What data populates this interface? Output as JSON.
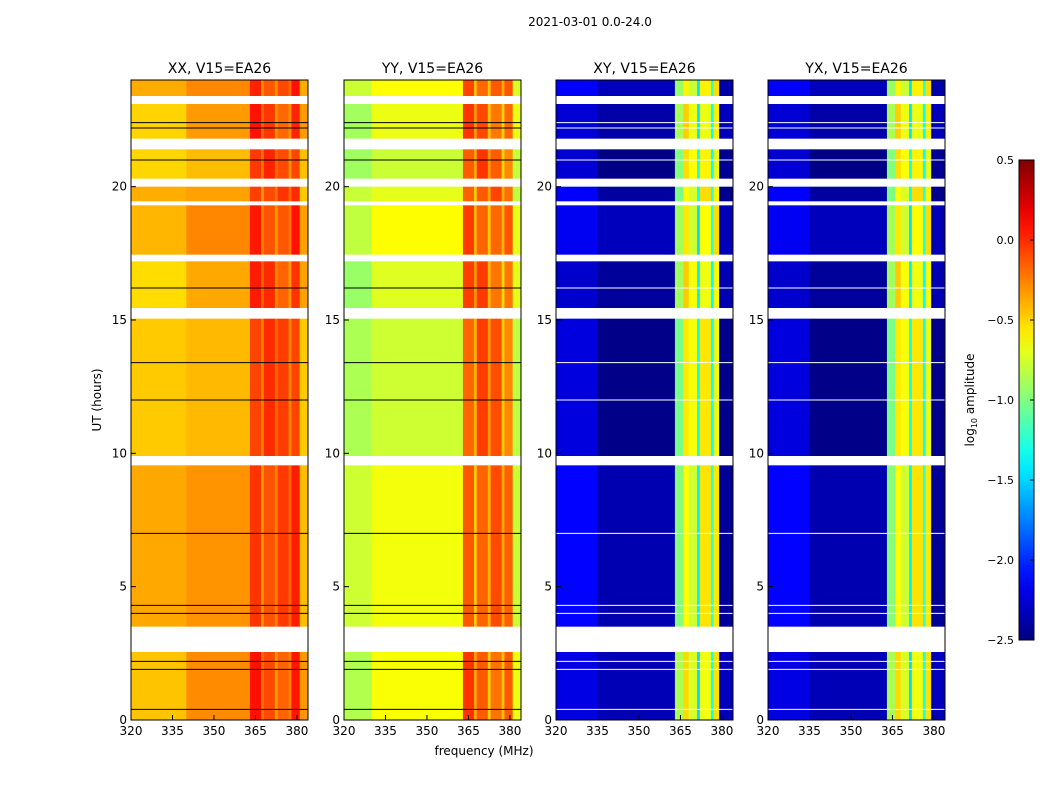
{
  "chart_data": {
    "type": "heatmap",
    "title": "2021-03-01 0.0-24.0",
    "xlabel": "frequency (MHz)",
    "ylabel": "UT (hours)",
    "xlim": [
      320,
      384
    ],
    "ylim": [
      0,
      24
    ],
    "xticks": [
      "320",
      "335",
      "350",
      "365",
      "380"
    ],
    "yticks": [
      "0",
      "5",
      "10",
      "15",
      "20"
    ],
    "colorbar": {
      "label_main": "log",
      "label_sub": "10",
      "label_rest": " amplitude",
      "range": [
        -2.5,
        0.5
      ],
      "ticks": [
        "0.5",
        "0.0",
        "−0.5",
        "−1.0",
        "−1.5",
        "−2.0",
        "−2.5"
      ],
      "colormap": "jet"
    },
    "flagged_hours": [
      [
        2.55,
        3.5
      ],
      [
        9.55,
        9.9
      ],
      [
        15.05,
        15.45
      ],
      [
        17.2,
        17.45
      ],
      [
        19.3,
        19.45
      ],
      [
        20.0,
        20.3
      ],
      [
        21.4,
        21.8
      ],
      [
        23.1,
        23.4
      ]
    ],
    "panels": [
      {
        "title": "XX, V15=EA26",
        "bands": [
          {
            "f": [
              320,
              340
            ],
            "v": -0.45
          },
          {
            "f": [
              340,
              363
            ],
            "v": -0.35
          },
          {
            "f": [
              363,
              367
            ],
            "v": 0.0
          },
          {
            "f": [
              367,
              368
            ],
            "v": -0.25
          },
          {
            "f": [
              368,
              372
            ],
            "v": -0.05
          },
          {
            "f": [
              372,
              373
            ],
            "v": -0.25
          },
          {
            "f": [
              373,
              377
            ],
            "v": -0.1
          },
          {
            "f": [
              377,
              378
            ],
            "v": -0.25
          },
          {
            "f": [
              378,
              381
            ],
            "v": 0.0
          },
          {
            "f": [
              381,
              384
            ],
            "v": -0.4
          }
        ]
      },
      {
        "title": "YY, V15=EA26",
        "bands": [
          {
            "f": [
              320,
              330
            ],
            "v": -0.85
          },
          {
            "f": [
              330,
              363
            ],
            "v": -0.7
          },
          {
            "f": [
              363,
              367
            ],
            "v": -0.1
          },
          {
            "f": [
              367,
              368
            ],
            "v": -0.4
          },
          {
            "f": [
              368,
              372
            ],
            "v": -0.1
          },
          {
            "f": [
              372,
              373
            ],
            "v": -0.4
          },
          {
            "f": [
              373,
              377
            ],
            "v": -0.15
          },
          {
            "f": [
              377,
              378
            ],
            "v": -0.45
          },
          {
            "f": [
              378,
              381
            ],
            "v": -0.2
          },
          {
            "f": [
              381,
              384
            ],
            "v": -0.75
          }
        ]
      },
      {
        "title": "XY, V15=EA26",
        "bands": [
          {
            "f": [
              320,
              335
            ],
            "v": -2.2
          },
          {
            "f": [
              335,
              363
            ],
            "v": -2.4
          },
          {
            "f": [
              363,
              366
            ],
            "v": -0.95
          },
          {
            "f": [
              366,
              368
            ],
            "v": -0.55
          },
          {
            "f": [
              368,
              371
            ],
            "v": -0.7
          },
          {
            "f": [
              371,
              372
            ],
            "v": -1.4
          },
          {
            "f": [
              372,
              376
            ],
            "v": -0.6
          },
          {
            "f": [
              376,
              377
            ],
            "v": -1.3
          },
          {
            "f": [
              377,
              379
            ],
            "v": -0.6
          },
          {
            "f": [
              379,
              384
            ],
            "v": -2.4
          }
        ]
      },
      {
        "title": "YX, V15=EA26",
        "bands": [
          {
            "f": [
              320,
              335
            ],
            "v": -2.2
          },
          {
            "f": [
              335,
              363
            ],
            "v": -2.4
          },
          {
            "f": [
              363,
              366
            ],
            "v": -0.95
          },
          {
            "f": [
              366,
              368
            ],
            "v": -0.55
          },
          {
            "f": [
              368,
              371
            ],
            "v": -0.7
          },
          {
            "f": [
              371,
              372
            ],
            "v": -1.4
          },
          {
            "f": [
              372,
              376
            ],
            "v": -0.6
          },
          {
            "f": [
              376,
              377
            ],
            "v": -1.3
          },
          {
            "f": [
              377,
              379
            ],
            "v": -0.6
          },
          {
            "f": [
              379,
              384
            ],
            "v": -2.4
          }
        ]
      }
    ]
  }
}
